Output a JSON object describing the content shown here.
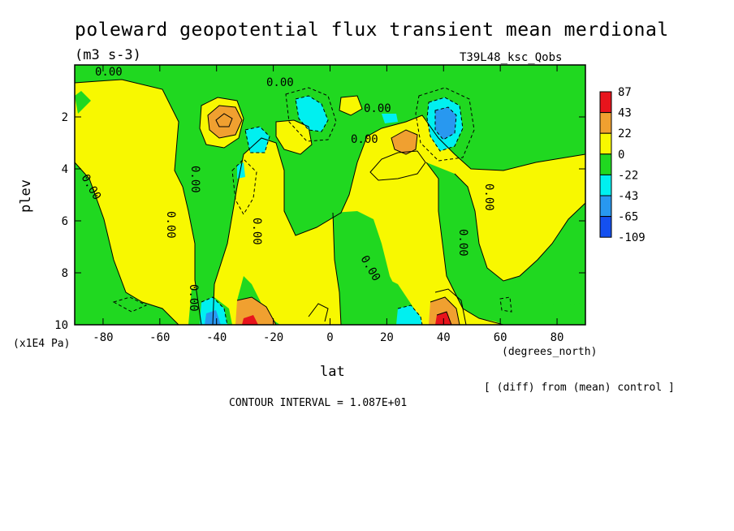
{
  "chart_data": {
    "type": "heatmap",
    "title": "poleward geopotential flux transient mean merdional",
    "units": "(m3 s-3)",
    "experiment": "T39L48_ksc_Qobs",
    "xlabel": "lat",
    "x_units": "(degrees_north)",
    "ylabel": "plev",
    "y_units": "(x1E4 Pa)",
    "xlim": [
      -90,
      90
    ],
    "ylim": [
      10,
      0
    ],
    "x_ticks": [
      -80,
      -60,
      -40,
      -20,
      0,
      20,
      40,
      60,
      80
    ],
    "x_tick_labels": [
      "-80",
      "-60",
      "-40",
      "-20",
      "0",
      "20",
      "40",
      "60",
      "80"
    ],
    "y_ticks": [
      2,
      4,
      6,
      8,
      10
    ],
    "y_tick_labels": [
      "2",
      "4",
      "6",
      "8",
      "10"
    ],
    "colorbar_levels": [
      "87",
      "43",
      "22",
      "0",
      "-22",
      "-43",
      "-65",
      "-109"
    ],
    "colorbar_colors": [
      "#e8141c",
      "#f0a030",
      "#f8f800",
      "#20d820",
      "#00f0f0",
      "#2898f0",
      "#1450f0"
    ],
    "contour_label": "0.00",
    "contour_interval_text": "CONTOUR INTERVAL = 1.087E+01",
    "note": "[ (diff) from (mean) control ]",
    "features": [
      {
        "lat": -38,
        "plev": 2.2,
        "value": 30
      },
      {
        "lat": -35,
        "plev": 2.1,
        "value": 40
      },
      {
        "lat": -28,
        "plev": 3.0,
        "value": -25
      },
      {
        "lat": -12,
        "plev": 1.3,
        "value": -12
      },
      {
        "lat": 5,
        "plev": 1.3,
        "value": -8
      },
      {
        "lat": 28,
        "plev": 2.9,
        "value": 25
      },
      {
        "lat": 40,
        "plev": 2.3,
        "value": -50
      },
      {
        "lat": -42,
        "plev": 9.7,
        "value": -50
      },
      {
        "lat": -30,
        "plev": 9.5,
        "value": 60
      },
      {
        "lat": 25,
        "plev": 9.7,
        "value": -30
      },
      {
        "lat": 38,
        "plev": 9.5,
        "value": 85
      }
    ]
  }
}
